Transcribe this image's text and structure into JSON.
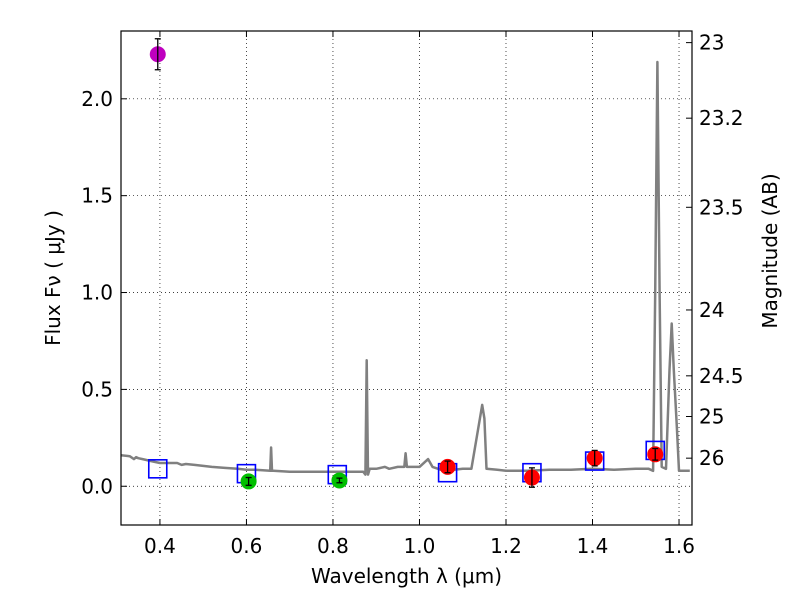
{
  "chart_data": {
    "type": "scatter",
    "xlabel": "Wavelength  λ (μm)",
    "ylabel": "Flux  Fν  ( μJy )",
    "y2label": "Magnitude (AB)",
    "xlim": [
      0.31,
      1.63
    ],
    "ylim": [
      -0.2,
      2.35
    ],
    "grid": true,
    "x_ticks": [
      0.4,
      0.6,
      0.8,
      1.0,
      1.2,
      1.4,
      1.6
    ],
    "x_tick_labels": [
      "0.4",
      "0.6",
      "0.8",
      "1.0",
      "1.2",
      "1.4",
      "1.6"
    ],
    "y_ticks": [
      0.0,
      0.5,
      1.0,
      1.5,
      2.0
    ],
    "y_tick_labels": [
      "0.0",
      "0.5",
      "1.0",
      "1.5",
      "2.0"
    ],
    "mag_ticks": [
      {
        "label": "23",
        "flux": 2.29
      },
      {
        "label": "23.2",
        "flux": 1.9
      },
      {
        "label": "23.5",
        "flux": 1.44
      },
      {
        "label": "24",
        "flux": 0.91
      },
      {
        "label": "24.5",
        "flux": 0.57
      },
      {
        "label": "25",
        "flux": 0.36
      },
      {
        "label": "26",
        "flux": 0.145
      }
    ],
    "colors": {
      "model": "#808080",
      "model_points": "#0000ff",
      "purple": "#bf00bf",
      "green": "#00bf00",
      "red": "#ff0000"
    },
    "model_spectrum": {
      "x": [
        0.31,
        0.33,
        0.34,
        0.345,
        0.35,
        0.36,
        0.38,
        0.4,
        0.42,
        0.44,
        0.45,
        0.46,
        0.48,
        0.5,
        0.52,
        0.55,
        0.58,
        0.6,
        0.62,
        0.655,
        0.657,
        0.659,
        0.662,
        0.7,
        0.75,
        0.8,
        0.85,
        0.87,
        0.875,
        0.878,
        0.881,
        0.885,
        0.9,
        0.92,
        0.93,
        0.95,
        0.965,
        0.968,
        0.971,
        0.98,
        1.0,
        1.02,
        1.03,
        1.05,
        1.08,
        1.1,
        1.12,
        1.145,
        1.15,
        1.155,
        1.18,
        1.2,
        1.25,
        1.3,
        1.35,
        1.4,
        1.45,
        1.5,
        1.53,
        1.54,
        1.545,
        1.55,
        1.555,
        1.56,
        1.57,
        1.578,
        1.583,
        1.588,
        1.595,
        1.6,
        1.605,
        1.625
      ],
      "y": [
        0.16,
        0.155,
        0.14,
        0.15,
        0.145,
        0.14,
        0.13,
        0.12,
        0.12,
        0.12,
        0.11,
        0.115,
        0.11,
        0.105,
        0.1,
        0.095,
        0.09,
        0.085,
        0.085,
        0.08,
        0.2,
        0.08,
        0.08,
        0.075,
        0.075,
        0.075,
        0.075,
        0.075,
        0.06,
        0.65,
        0.06,
        0.09,
        0.09,
        0.1,
        0.09,
        0.1,
        0.1,
        0.17,
        0.1,
        0.1,
        0.1,
        0.14,
        0.1,
        0.085,
        0.085,
        0.09,
        0.09,
        0.42,
        0.35,
        0.09,
        0.085,
        0.08,
        0.08,
        0.085,
        0.085,
        0.09,
        0.085,
        0.09,
        0.09,
        0.08,
        1.0,
        2.19,
        1.0,
        0.1,
        0.09,
        0.6,
        0.84,
        0.6,
        0.3,
        0.08,
        0.08,
        0.08
      ]
    },
    "series": [
      {
        "name": "model photometry",
        "marker": "square",
        "color": "#0000ff",
        "x": [
          0.395,
          0.6,
          0.81,
          1.065,
          1.26,
          1.405,
          1.545
        ],
        "y": [
          0.09,
          0.065,
          0.06,
          0.07,
          0.07,
          0.13,
          0.185
        ]
      },
      {
        "name": "purple",
        "marker": "circle",
        "color": "#bf00bf",
        "x": [
          0.395
        ],
        "y": [
          2.23
        ],
        "yerr": [
          0.08
        ]
      },
      {
        "name": "green",
        "marker": "circle",
        "color": "#00bf00",
        "x": [
          0.605,
          0.815
        ],
        "y": [
          0.025,
          0.03
        ],
        "yerr": [
          0.02,
          0.012
        ]
      },
      {
        "name": "red",
        "marker": "circle",
        "color": "#ff0000",
        "x": [
          1.065,
          1.26,
          1.405,
          1.545
        ],
        "y": [
          0.1,
          0.045,
          0.145,
          0.165
        ],
        "yerr": [
          0.03,
          0.05,
          0.04,
          0.03
        ]
      }
    ]
  }
}
